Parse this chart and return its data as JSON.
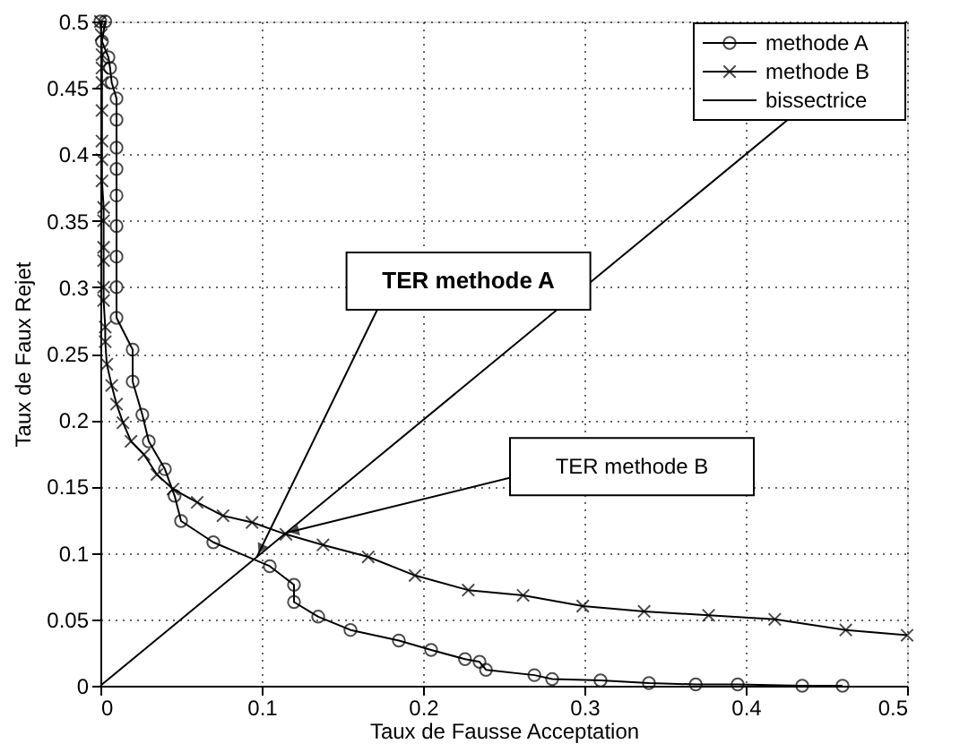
{
  "chart_data": {
    "type": "line",
    "xlabel": "Taux de Fausse Acceptation",
    "ylabel": "Taux de Faux Rejet",
    "xlim": [
      0,
      0.5
    ],
    "ylim": [
      0,
      0.5
    ],
    "xticks": [
      0,
      0.1,
      0.2,
      0.3,
      0.4,
      0.5
    ],
    "yticks": [
      0,
      0.05,
      0.1,
      0.15,
      0.2,
      0.25,
      0.3,
      0.35,
      0.4,
      0.45,
      0.5
    ],
    "grid": true,
    "legend": "top right",
    "series": [
      {
        "name": "methode A",
        "color": "#000000",
        "marker": "circle",
        "x": [
          0,
          0.003,
          0.001,
          0.005,
          0.006,
          0.007,
          0.01,
          0.01,
          0.01,
          0.01,
          0.01,
          0.01,
          0.01,
          0.01,
          0.01,
          0.02,
          0.02,
          0.026,
          0.03,
          0.04,
          0.046,
          0.05,
          0.07,
          0.105,
          0.12,
          0.12,
          0.135,
          0.155,
          0.185,
          0.205,
          0.226,
          0.235,
          0.239,
          0.269,
          0.28,
          0.31,
          0.34,
          0.369,
          0.395,
          0.435,
          0.46
        ],
        "values": [
          0.5,
          0.5,
          0.485,
          0.473,
          0.465,
          0.454,
          0.442,
          0.426,
          0.405,
          0.389,
          0.369,
          0.346,
          0.323,
          0.3,
          0.277,
          0.253,
          0.229,
          0.204,
          0.184,
          0.163,
          0.143,
          0.124,
          0.108,
          0.09,
          0.076,
          0.063,
          0.052,
          0.042,
          0.034,
          0.027,
          0.02,
          0.018,
          0.012,
          0.008,
          0.005,
          0.004,
          0.002,
          0.001,
          0.001,
          0,
          0
        ]
      },
      {
        "name": "methode B",
        "color": "#000000",
        "marker": "cross",
        "x": [
          0,
          0.0005,
          0.001,
          0.001,
          0.001,
          0.001,
          0.001,
          0.001,
          0.001,
          0.002,
          0.002,
          0.002,
          0.002,
          0.002,
          0.002,
          0.003,
          0.003,
          0.004,
          0.007,
          0.01,
          0.014,
          0.019,
          0.027,
          0.035,
          0.045,
          0.06,
          0.076,
          0.094,
          0.115,
          0.138,
          0.166,
          0.195,
          0.228,
          0.262,
          0.299,
          0.337,
          0.377,
          0.418,
          0.462,
          0.5
        ],
        "values": [
          0.5,
          0.49,
          0.475,
          0.465,
          0.454,
          0.433,
          0.41,
          0.396,
          0.38,
          0.36,
          0.35,
          0.33,
          0.32,
          0.3,
          0.29,
          0.27,
          0.259,
          0.242,
          0.226,
          0.212,
          0.198,
          0.184,
          0.174,
          0.159,
          0.148,
          0.138,
          0.128,
          0.123,
          0.114,
          0.106,
          0.097,
          0.083,
          0.072,
          0.068,
          0.06,
          0.056,
          0.053,
          0.05,
          0.042,
          0.038
        ]
      },
      {
        "name": "bissectrice",
        "color": "#000000",
        "marker": "none",
        "x": [
          0,
          0.5
        ],
        "values": [
          0,
          0.5
        ]
      }
    ],
    "annotations": [
      {
        "text": "TER methode A",
        "x": 0.097,
        "y": 0.097
      },
      {
        "text": "TER methode B",
        "x": 0.115,
        "y": 0.115
      }
    ]
  }
}
